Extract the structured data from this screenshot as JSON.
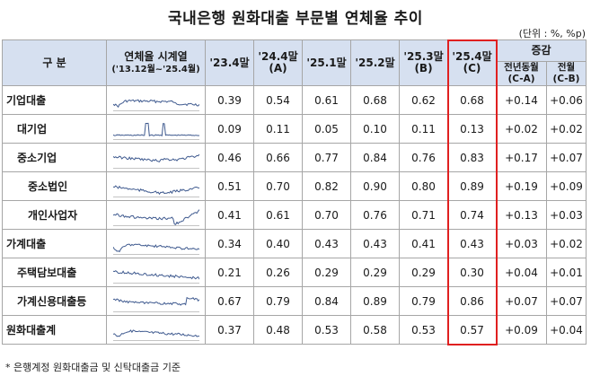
{
  "title": "국내은행 원화대출 부문별 연체율 추이",
  "unit": "(단위 : %, %p)",
  "header": {
    "category": "구 분",
    "series": "연체율 시계열",
    "series_sub": "('13.12월~'25.4월)",
    "periods": [
      {
        "line1": "'23.4말",
        "line2": ""
      },
      {
        "line1": "'24.4말",
        "line2": "(A)"
      },
      {
        "line1": "'25.1말",
        "line2": ""
      },
      {
        "line1": "'25.2말",
        "line2": ""
      },
      {
        "line1": "'25.3말",
        "line2": "(B)"
      },
      {
        "line1": "'25.4말",
        "line2": "(C)"
      }
    ],
    "change": "증감",
    "change_cols": [
      {
        "line1": "전년동월",
        "line2": "(C-A)"
      },
      {
        "line1": "전월",
        "line2": "(C-B)"
      }
    ]
  },
  "rows": [
    {
      "label": "기업대출",
      "level": 1,
      "values": [
        "0.39",
        "0.54",
        "0.61",
        "0.68",
        "0.62",
        "0.68"
      ],
      "changes": [
        "+0.14",
        "+0.06"
      ]
    },
    {
      "label": "대기업",
      "level": 2,
      "values": [
        "0.09",
        "0.11",
        "0.05",
        "0.10",
        "0.11",
        "0.13"
      ],
      "changes": [
        "+0.02",
        "+0.02"
      ]
    },
    {
      "label": "중소기업",
      "level": 2,
      "values": [
        "0.46",
        "0.66",
        "0.77",
        "0.84",
        "0.76",
        "0.83"
      ],
      "changes": [
        "+0.17",
        "+0.07"
      ]
    },
    {
      "label": "중소법인",
      "level": 3,
      "values": [
        "0.51",
        "0.70",
        "0.82",
        "0.90",
        "0.80",
        "0.89"
      ],
      "changes": [
        "+0.19",
        "+0.09"
      ]
    },
    {
      "label": "개인사업자",
      "level": 3,
      "values": [
        "0.41",
        "0.61",
        "0.70",
        "0.76",
        "0.71",
        "0.74"
      ],
      "changes": [
        "+0.13",
        "+0.03"
      ]
    },
    {
      "label": "가계대출",
      "level": 1,
      "values": [
        "0.34",
        "0.40",
        "0.43",
        "0.43",
        "0.41",
        "0.43"
      ],
      "changes": [
        "+0.03",
        "+0.02"
      ]
    },
    {
      "label": "주택담보대출",
      "level": 2,
      "values": [
        "0.21",
        "0.26",
        "0.29",
        "0.29",
        "0.29",
        "0.30"
      ],
      "changes": [
        "+0.04",
        "+0.01"
      ]
    },
    {
      "label": "가계신용대출등",
      "level": 2,
      "values": [
        "0.67",
        "0.79",
        "0.84",
        "0.89",
        "0.79",
        "0.86"
      ],
      "changes": [
        "+0.07",
        "+0.07"
      ]
    },
    {
      "label": "원화대출계",
      "level": 1,
      "values": [
        "0.37",
        "0.48",
        "0.53",
        "0.58",
        "0.53",
        "0.57"
      ],
      "changes": [
        "+0.09",
        "+0.04"
      ]
    }
  ],
  "highlight_color": "#e02020",
  "footnote": "* 은행계정 원화대출금 및 신탁대출금 기준"
}
